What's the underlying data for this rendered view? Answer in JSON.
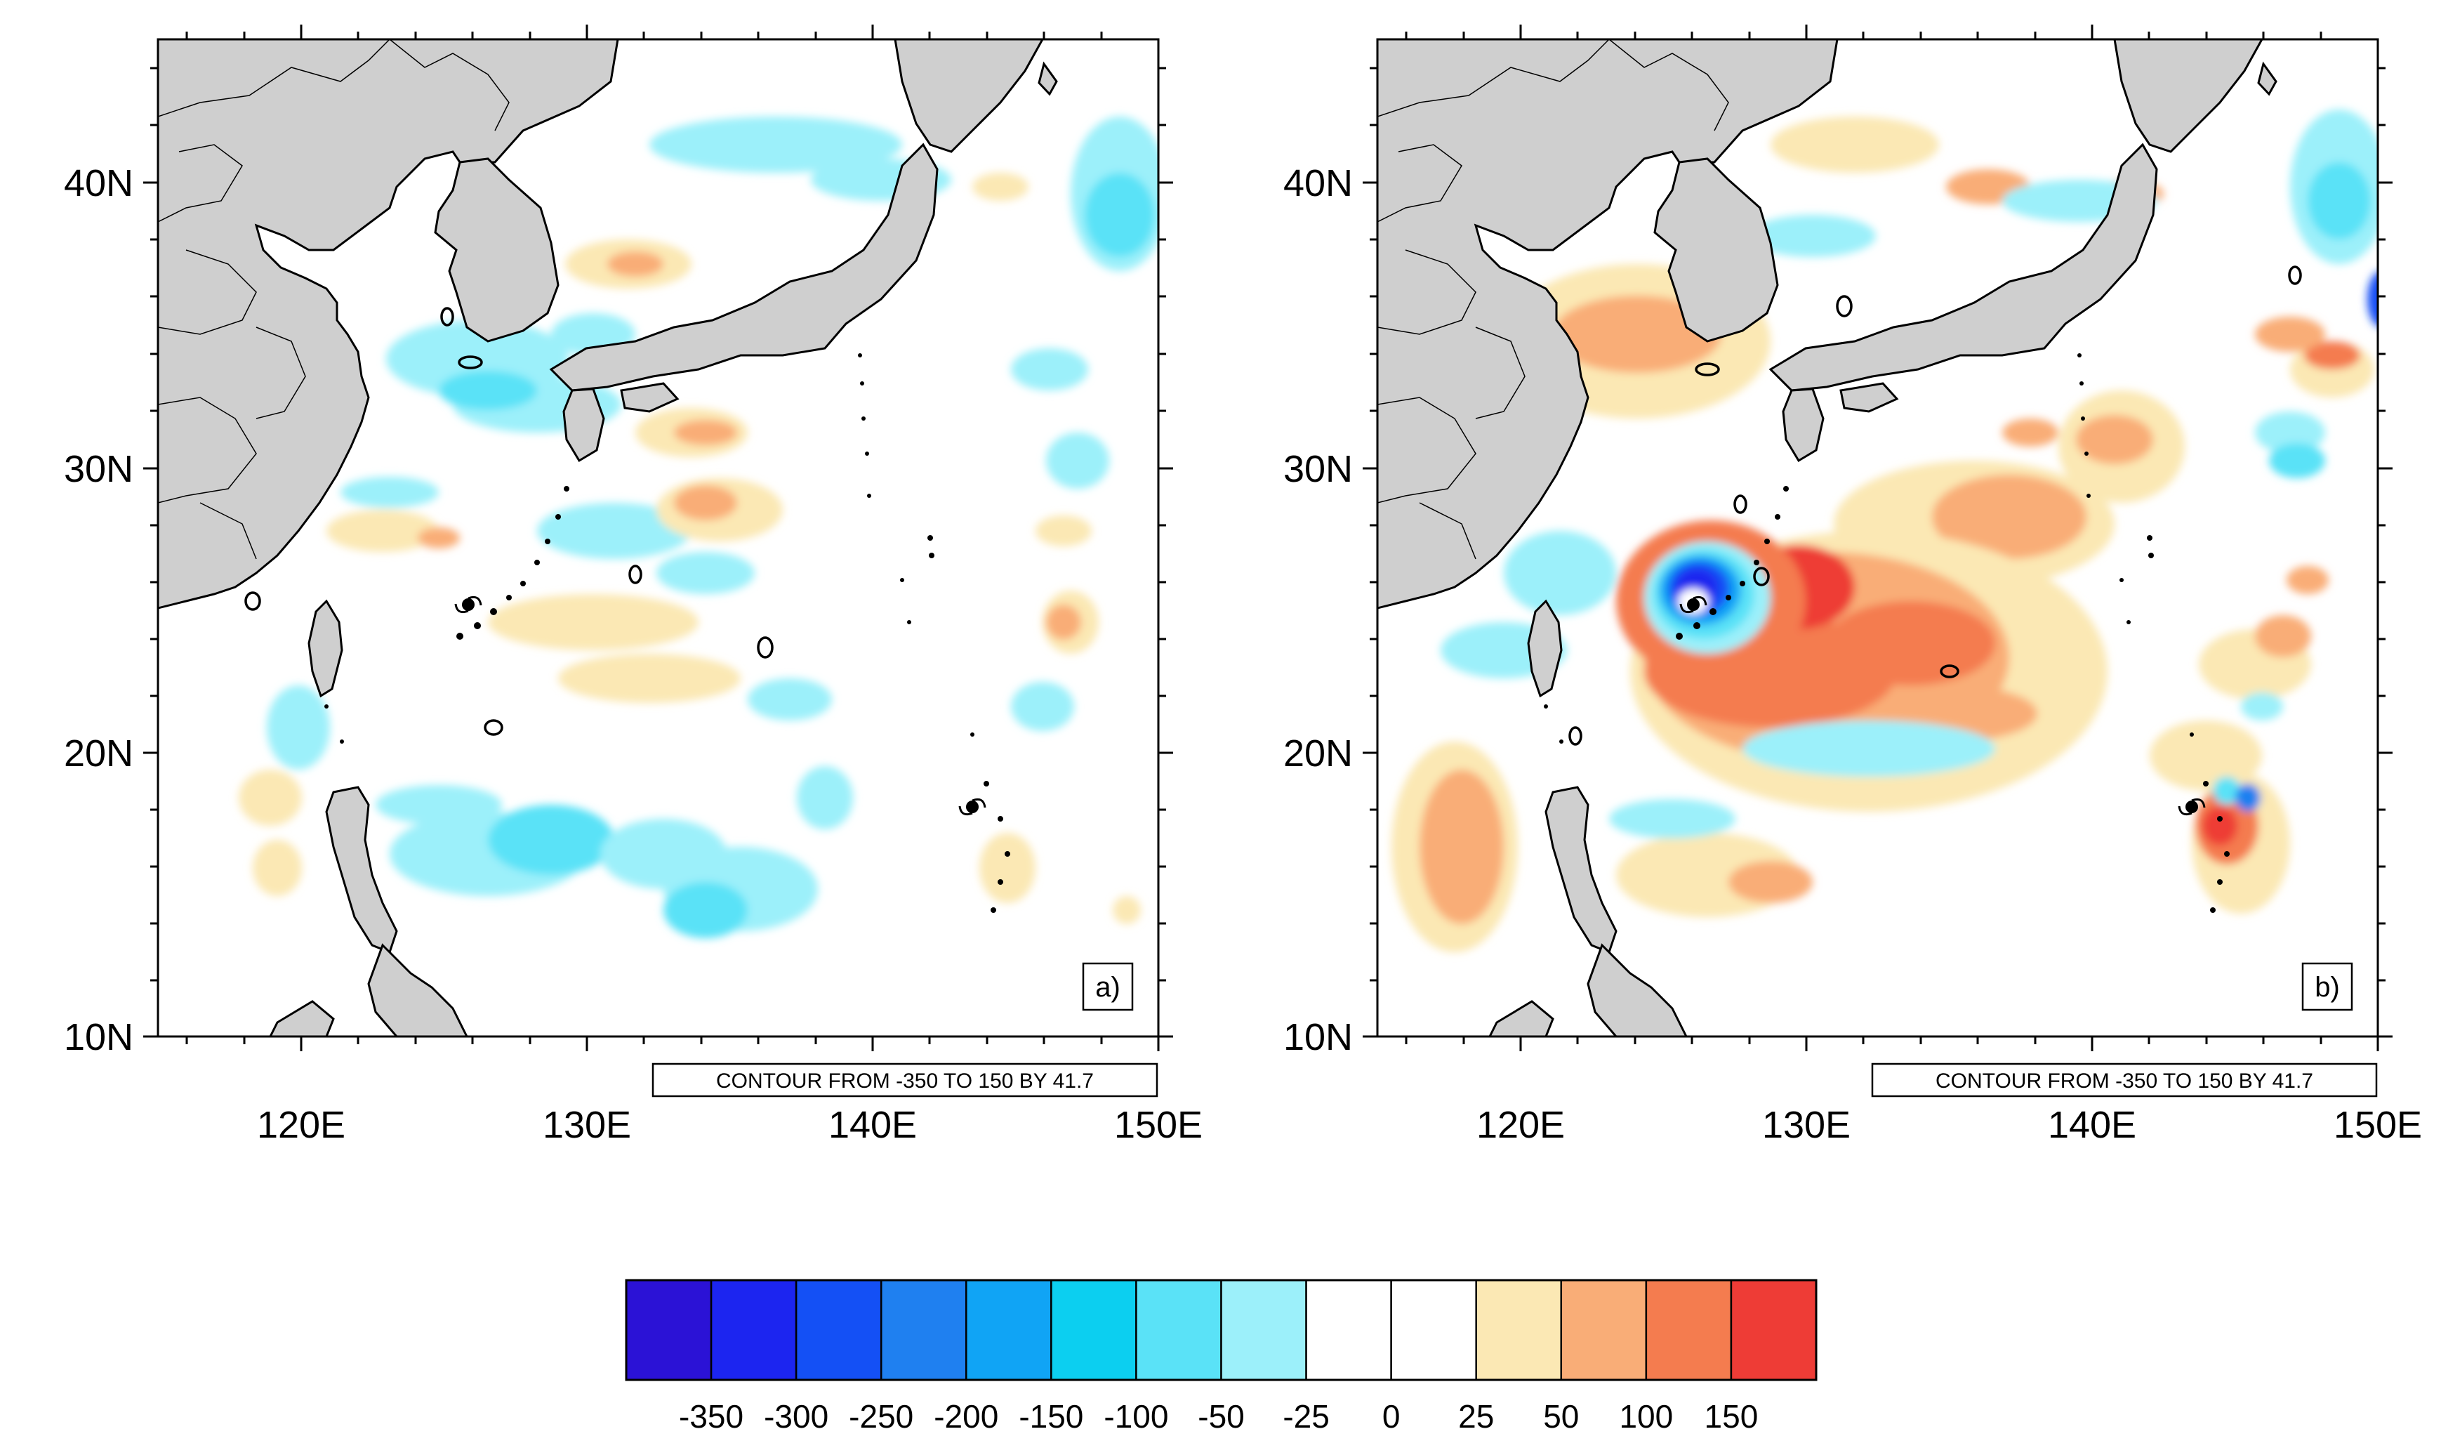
{
  "figure": {
    "panels": [
      {
        "id": "a",
        "tag": "a)",
        "contour_info": "CONTOUR FROM -350 TO 150 BY 41.7",
        "lat_labels": [
          "40N",
          "30N",
          "20N",
          "10N"
        ],
        "lon_labels": [
          "120E",
          "130E",
          "140E",
          "150E"
        ]
      },
      {
        "id": "b",
        "tag": "b)",
        "contour_info": "CONTOUR FROM -350 TO 150 BY 41.7",
        "lat_labels": [
          "40N",
          "30N",
          "20N",
          "10N"
        ],
        "lon_labels": [
          "120E",
          "130E",
          "140E",
          "150E"
        ]
      }
    ],
    "colorbar": {
      "labels": [
        "-350",
        "-300",
        "-250",
        "-200",
        "-150",
        "-100",
        "-50",
        "-25",
        "0",
        "25",
        "50",
        "100",
        "150"
      ],
      "colors": [
        "#2b12d6",
        "#1c25f0",
        "#1450f5",
        "#1f80f0",
        "#10a4f5",
        "#0ccff0",
        "#5ae2f7",
        "#9cf0fa",
        "#ffffff",
        "#ffffff",
        "#fbe8b4",
        "#f9ad77",
        "#f47c4f",
        "#ee3c36"
      ]
    },
    "map_domain": {
      "lon_range": [
        115,
        150
      ],
      "lat_range": [
        10,
        45
      ],
      "land_color": "#cfcfcf"
    }
  }
}
